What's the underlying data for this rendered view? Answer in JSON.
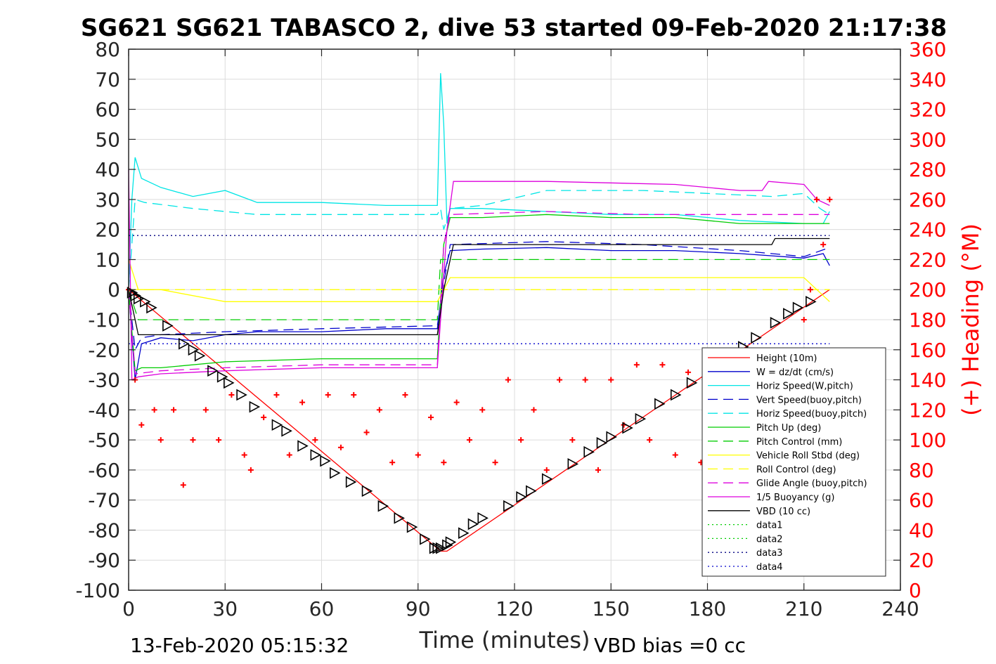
{
  "chart_data": {
    "type": "line",
    "title": "SG621 SG621 TABASCO 2, dive 53 started 09-Feb-2020 21:17:38",
    "xlabel": "Time (minutes)",
    "ylabel": "",
    "y2label": "(+) Heading (°M)",
    "xlim": [
      0,
      240
    ],
    "ylim": [
      -100,
      80
    ],
    "y2lim": [
      0,
      360
    ],
    "xticks": [
      "0",
      "30",
      "60",
      "90",
      "120",
      "150",
      "180",
      "210",
      "240"
    ],
    "yticks": [
      "80",
      "70",
      "60",
      "50",
      "40",
      "30",
      "20",
      "10",
      "0",
      "-10",
      "-20",
      "-30",
      "-40",
      "-50",
      "-60",
      "-70",
      "-80",
      "-90",
      "-100"
    ],
    "y2ticks": [
      "360",
      "340",
      "320",
      "300",
      "280",
      "260",
      "240",
      "220",
      "200",
      "180",
      "160",
      "140",
      "120",
      "100",
      "80",
      "60",
      "40",
      "20",
      "0"
    ],
    "grid": true,
    "legend_position": "bottom-right",
    "footer_left": "13-Feb-2020 05:15:32",
    "footer_right": "VBD bias =0 cc",
    "series": [
      {
        "name": "Height (10m)",
        "color": "#ff0000",
        "style": "solid",
        "x": [
          0,
          97,
          99,
          218
        ],
        "y": [
          0,
          -87,
          -87,
          0
        ]
      },
      {
        "name": "W = dz/dt (cm/s)",
        "color": "#0000cc",
        "style": "solid",
        "x": [
          0,
          2,
          4,
          10,
          20,
          30,
          40,
          60,
          80,
          96,
          98,
          100,
          110,
          130,
          150,
          170,
          190,
          210,
          216,
          218
        ],
        "y": [
          0,
          -30,
          -18,
          -16,
          -17,
          -15,
          -14,
          -14,
          -13,
          -13,
          5,
          13,
          13.5,
          14,
          13,
          13,
          12,
          10.5,
          12,
          8
        ]
      },
      {
        "name": "Horiz Speed(W,pitch)",
        "color": "#00e5e5",
        "style": "solid",
        "x": [
          0,
          1,
          2,
          4,
          10,
          20,
          30,
          40,
          60,
          80,
          96,
          97,
          98,
          99,
          100,
          110,
          130,
          150,
          170,
          190,
          210,
          216,
          218
        ],
        "y": [
          0,
          30,
          44,
          37,
          34,
          31,
          33,
          29,
          29,
          28,
          28,
          72,
          55,
          22,
          27,
          27,
          26,
          25,
          25,
          23,
          22,
          22,
          26
        ]
      },
      {
        "name": "Vert Speed(buoy,pitch)",
        "color": "#0000cc",
        "style": "dashed",
        "x": [
          0,
          2,
          4,
          10,
          30,
          60,
          96,
          98,
          100,
          130,
          160,
          190,
          210,
          218
        ],
        "y": [
          0,
          -20,
          -16,
          -15,
          -14,
          -13,
          -12,
          2,
          15,
          16,
          15,
          13,
          11,
          14
        ]
      },
      {
        "name": "Horiz Speed(buoy,pitch)",
        "color": "#00e5e5",
        "style": "dashed",
        "x": [
          0,
          2,
          5,
          20,
          30,
          40,
          60,
          80,
          96,
          97,
          98,
          100,
          110,
          130,
          160,
          180,
          200,
          210,
          215,
          218
        ],
        "y": [
          0,
          30,
          29,
          27,
          26,
          25,
          25,
          25,
          25,
          27,
          20,
          27,
          28,
          33,
          33,
          32,
          31,
          32,
          27,
          25
        ]
      },
      {
        "name": "Pitch Up (deg)",
        "color": "#00cc00",
        "style": "solid",
        "x": [
          0,
          2,
          4,
          10,
          30,
          60,
          96,
          98,
          100,
          110,
          130,
          150,
          170,
          190,
          210,
          218
        ],
        "y": [
          0,
          -27,
          -26,
          -26,
          -24,
          -23,
          -23,
          15,
          24,
          24,
          25,
          24,
          24,
          22,
          22,
          22
        ]
      },
      {
        "name": "Pitch Control (mm)",
        "color": "#00cc00",
        "style": "dashed",
        "x": [
          0,
          3,
          96,
          97,
          218
        ],
        "y": [
          0,
          -10,
          -10,
          10,
          10
        ]
      },
      {
        "name": "Vehicle Roll Stbd (deg)",
        "color": "#ffff00",
        "style": "solid",
        "x": [
          0,
          3,
          10,
          30,
          60,
          90,
          96,
          98,
          100,
          110,
          130,
          150,
          170,
          190,
          210,
          218
        ],
        "y": [
          10,
          0,
          0,
          -4,
          -4,
          -4,
          -4,
          0,
          4,
          4,
          4,
          4,
          4,
          4,
          4,
          -4
        ]
      },
      {
        "name": "Roll Control (deg)",
        "color": "#ffff00",
        "style": "dashed",
        "x": [
          0,
          3,
          96,
          98,
          218
        ],
        "y": [
          0,
          0,
          0,
          0,
          0
        ]
      },
      {
        "name": "Glide Angle (buoy,pitch)",
        "color": "#dd00dd",
        "style": "dashed",
        "x": [
          0,
          2,
          10,
          30,
          60,
          96,
          98,
          100,
          130,
          160,
          190,
          210,
          218
        ],
        "y": [
          0,
          -28,
          -27,
          -26,
          -25,
          -25,
          15,
          25,
          26,
          25,
          25,
          25,
          25
        ]
      },
      {
        "name": "1/5 Buoyancy (g)",
        "color": "#dd00dd",
        "style": "solid",
        "x": [
          0,
          1,
          3,
          10,
          30,
          60,
          96,
          97,
          99,
          101,
          130,
          170,
          190,
          197,
          199,
          210,
          214,
          218
        ],
        "y": [
          40,
          -30,
          -29,
          -28,
          -27,
          -26,
          -26,
          -10,
          20,
          36,
          36,
          35,
          33,
          33,
          36,
          35,
          30,
          28
        ]
      },
      {
        "name": "VBD (10 cc)",
        "color": "#000000",
        "style": "solid",
        "x": [
          0,
          2,
          3,
          96,
          98,
          101,
          200,
          201,
          218
        ],
        "y": [
          0,
          -10,
          -15,
          -15,
          0,
          15,
          15,
          17,
          17
        ]
      },
      {
        "name": "data1",
        "color": "#00cc00",
        "style": "dotted",
        "x": [
          0,
          218
        ],
        "y": [
          null,
          null
        ]
      },
      {
        "name": "data2",
        "color": "#00cc00",
        "style": "dotted",
        "x": [
          0,
          218
        ],
        "y": [
          null,
          null
        ]
      },
      {
        "name": "data3",
        "color": "#000080",
        "style": "dotted",
        "x": [
          0,
          218
        ],
        "y": [
          18,
          18
        ]
      },
      {
        "name": "data4",
        "color": "#0000cc",
        "style": "dotted",
        "x": [
          0,
          218
        ],
        "y": [
          -18,
          -18
        ]
      }
    ],
    "heading_series": {
      "name": "(+) Heading (°M)",
      "color": "#ff0000",
      "marker": "+",
      "axis": "right",
      "x": [
        0,
        2,
        4,
        8,
        10,
        14,
        17,
        20,
        24,
        28,
        32,
        36,
        38,
        42,
        46,
        50,
        54,
        58,
        62,
        66,
        70,
        74,
        78,
        82,
        86,
        90,
        94,
        98,
        102,
        106,
        110,
        114,
        118,
        122,
        126,
        130,
        134,
        138,
        142,
        146,
        150,
        154,
        158,
        162,
        166,
        170,
        174,
        178,
        182,
        186,
        190,
        194,
        198,
        202,
        206,
        210,
        212,
        214,
        216,
        218
      ],
      "y": [
        200,
        140,
        110,
        120,
        100,
        120,
        70,
        100,
        120,
        100,
        130,
        90,
        80,
        115,
        130,
        90,
        125,
        100,
        130,
        95,
        130,
        105,
        120,
        85,
        130,
        90,
        115,
        85,
        125,
        100,
        120,
        85,
        140,
        100,
        120,
        80,
        140,
        100,
        140,
        80,
        140,
        110,
        150,
        100,
        150,
        90,
        145,
        85,
        150,
        100,
        140,
        90,
        150,
        100,
        150,
        180,
        200,
        260,
        230,
        260
      ]
    },
    "marker_series": {
      "name": "",
      "color": "#000000",
      "marker": "triangle",
      "x": [
        1,
        2,
        3,
        5,
        7,
        12,
        17,
        20,
        22,
        26,
        29,
        31,
        35,
        39,
        46,
        49,
        54,
        58,
        61,
        64,
        69,
        74,
        79,
        84,
        88,
        92,
        95,
        96,
        97,
        99,
        100,
        104,
        107,
        110,
        118,
        122,
        125,
        130,
        138,
        143,
        147,
        150,
        155,
        159,
        165,
        170,
        175,
        181,
        187,
        191,
        195,
        201,
        205,
        208,
        212
      ],
      "y": [
        -1,
        -2,
        -3,
        -4,
        -6,
        -12,
        -18,
        -20,
        -22,
        -27,
        -29,
        -31,
        -35,
        -39,
        -45,
        -47,
        -52,
        -55,
        -57,
        -61,
        -64,
        -67,
        -72,
        -76,
        -79,
        -83,
        -86,
        -86,
        -86,
        -85,
        -84,
        -81,
        -78,
        -76,
        -72,
        -69,
        -67,
        -63,
        -58,
        -54,
        -51,
        -49,
        -46,
        -43,
        -38,
        -35,
        -31,
        -27,
        -22,
        -19,
        -16,
        -11,
        -8,
        -6,
        -4
      ]
    }
  }
}
